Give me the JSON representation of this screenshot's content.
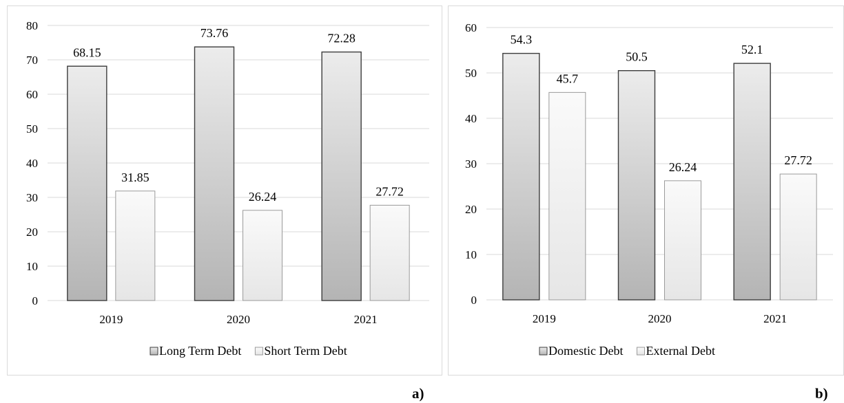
{
  "chart_data": [
    {
      "type": "bar",
      "categories": [
        "2019",
        "2020",
        "2021"
      ],
      "series": [
        {
          "name": "Long Term Debt",
          "values": [
            68.15,
            73.76,
            72.28
          ],
          "labels": [
            "68.15",
            "73.76",
            "72.28"
          ],
          "color": "#cfcfcf"
        },
        {
          "name": "Short Term Debt",
          "values": [
            31.85,
            26.24,
            27.72
          ],
          "labels": [
            "31.85",
            "26.24",
            "27.72"
          ],
          "color": "#f2f2f2"
        }
      ],
      "ylim": [
        0,
        80
      ],
      "yticks": [
        0,
        10,
        20,
        30,
        40,
        50,
        60,
        70,
        80
      ],
      "grid": true,
      "legend": "bottom",
      "panel_label": "a)"
    },
    {
      "type": "bar",
      "categories": [
        "2019",
        "2020",
        "2021"
      ],
      "series": [
        {
          "name": "Domestic Debt",
          "values": [
            54.3,
            50.5,
            52.1
          ],
          "labels": [
            "54.3",
            "50.5",
            "52.1"
          ],
          "color": "#cfcfcf"
        },
        {
          "name": "External Debt",
          "values": [
            45.7,
            26.24,
            27.72
          ],
          "labels": [
            "45.7",
            "26.24",
            "27.72"
          ],
          "color": "#f2f2f2"
        }
      ],
      "ylim": [
        0,
        60
      ],
      "yticks": [
        0,
        10,
        20,
        30,
        40,
        50,
        60
      ],
      "grid": true,
      "legend": "bottom",
      "panel_label": "b)"
    }
  ]
}
